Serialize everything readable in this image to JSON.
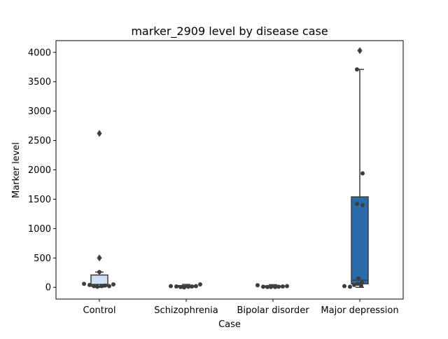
{
  "chart_data": {
    "type": "box",
    "title": "marker_2909 level by disease case",
    "xlabel": "Case",
    "ylabel": "Marker level",
    "categories": [
      "Control",
      "Schizophrenia",
      "Bipolar disorder",
      "Major depression"
    ],
    "ylim": [
      -200,
      4200
    ],
    "yticks": [
      0,
      500,
      1000,
      1500,
      2000,
      2500,
      3000,
      3500,
      4000
    ],
    "grid": false,
    "boxes": [
      {
        "category": "Control",
        "q1": 20,
        "median": 50,
        "q3": 210,
        "whisker_low": 0,
        "whisker_high": 260,
        "outliers": [
          500,
          2620
        ],
        "color": "#cfe1f2",
        "points": [
          60,
          40,
          20,
          10,
          20,
          30,
          20,
          50,
          260
        ]
      },
      {
        "category": "Schizophrenia",
        "q1": 5,
        "median": 15,
        "q3": 30,
        "whisker_low": 0,
        "whisker_high": 50,
        "outliers": [],
        "color": "#9cc3e4",
        "points": [
          20,
          15,
          5,
          0,
          10,
          15,
          20,
          50
        ]
      },
      {
        "category": "Bipolar disorder",
        "q1": 5,
        "median": 15,
        "q3": 25,
        "whisker_low": 0,
        "whisker_high": 45,
        "outliers": [],
        "color": "#5899ca",
        "points": [
          35,
          10,
          5,
          5,
          5,
          10,
          15,
          20
        ]
      },
      {
        "category": "Major depression",
        "q1": 60,
        "median": 120,
        "q3": 1540,
        "whisker_low": 0,
        "whisker_high": 3710,
        "outliers": [
          4030
        ],
        "color": "#2a6aab",
        "points": [
          20,
          10,
          40,
          60,
          80,
          1400,
          1420,
          1940,
          3710,
          150,
          30
        ]
      }
    ]
  }
}
